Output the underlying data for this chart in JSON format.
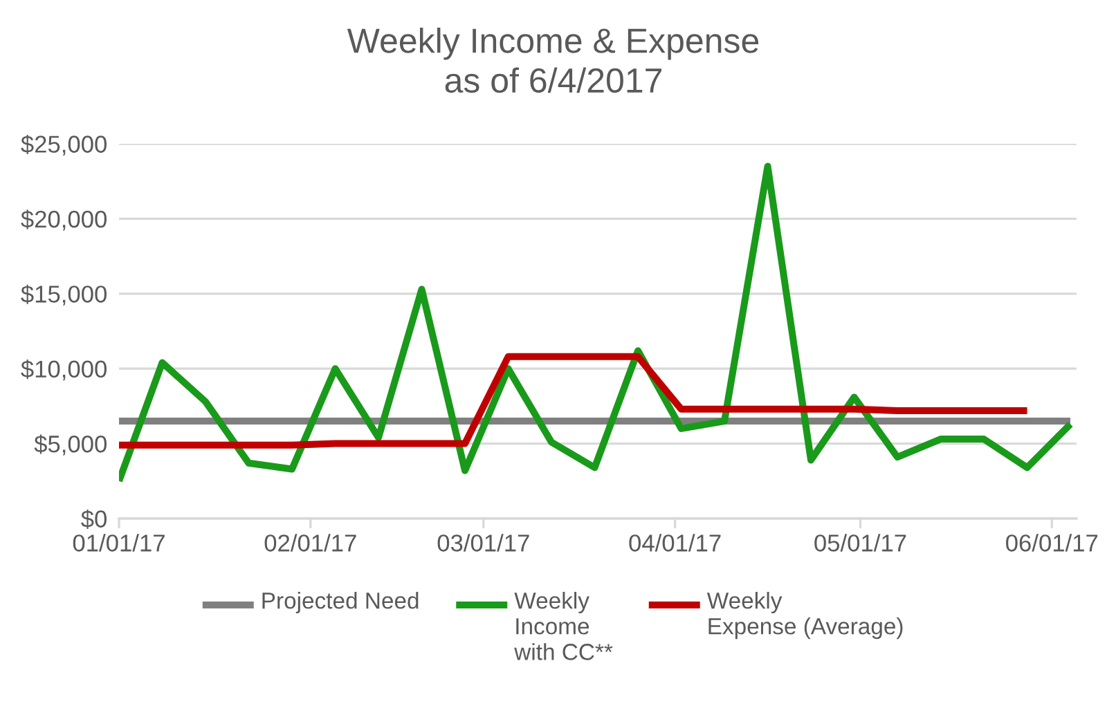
{
  "chart_data": {
    "type": "line",
    "title": "Weekly Income & Expense\nas of 6/4/2017",
    "xlim": [
      "2017-01-01",
      "2017-06-05"
    ],
    "xticks": [
      {
        "value": "2017-01-01",
        "label": "01/01/17"
      },
      {
        "value": "2017-02-01",
        "label": "02/01/17"
      },
      {
        "value": "2017-03-01",
        "label": "03/01/17"
      },
      {
        "value": "2017-04-01",
        "label": "04/01/17"
      },
      {
        "value": "2017-05-01",
        "label": "05/01/17"
      },
      {
        "value": "2017-06-01",
        "label": "06/01/17"
      }
    ],
    "ylim": [
      0,
      25000
    ],
    "yticks": [
      {
        "value": 0,
        "label": "$0"
      },
      {
        "value": 5000,
        "label": "$5,000"
      },
      {
        "value": 10000,
        "label": "$10,000"
      },
      {
        "value": 15000,
        "label": "$15,000"
      },
      {
        "value": 20000,
        "label": "$20,000"
      },
      {
        "value": 25000,
        "label": "$25,000"
      }
    ],
    "grid": "y",
    "legend": "bottom",
    "series": [
      {
        "name": "Projected Need",
        "color": "#808080",
        "x": [
          "2017-01-01",
          "2017-06-04"
        ],
        "values": [
          6500,
          6500
        ]
      },
      {
        "name": "Weekly\nIncome\nwith CC**",
        "color": "#1a9a1a",
        "x": [
          "2017-01-01",
          "2017-01-08",
          "2017-01-15",
          "2017-01-22",
          "2017-01-29",
          "2017-02-05",
          "2017-02-12",
          "2017-02-19",
          "2017-02-26",
          "2017-03-05",
          "2017-03-12",
          "2017-03-19",
          "2017-03-26",
          "2017-04-02",
          "2017-04-09",
          "2017-04-16",
          "2017-04-23",
          "2017-04-30",
          "2017-05-07",
          "2017-05-14",
          "2017-05-21",
          "2017-05-28",
          "2017-06-04"
        ],
        "values": [
          2500,
          10400,
          7800,
          3700,
          3300,
          10000,
          5400,
          15300,
          3200,
          10000,
          5100,
          3400,
          11200,
          6000,
          6500,
          23500,
          3900,
          8100,
          4100,
          5300,
          5300,
          3400,
          6300
        ]
      },
      {
        "name": "Weekly\nExpense (Average)",
        "color": "#c00000",
        "x": [
          "2017-01-01",
          "2017-01-08",
          "2017-01-15",
          "2017-01-22",
          "2017-01-29",
          "2017-02-05",
          "2017-02-12",
          "2017-02-19",
          "2017-02-26",
          "2017-03-05",
          "2017-03-12",
          "2017-03-19",
          "2017-03-26",
          "2017-04-02",
          "2017-04-09",
          "2017-04-16",
          "2017-04-23",
          "2017-04-30",
          "2017-05-07",
          "2017-05-14",
          "2017-05-21",
          "2017-05-28"
        ],
        "values": [
          4900,
          4900,
          4900,
          4900,
          4900,
          5000,
          5000,
          5000,
          5000,
          10800,
          10800,
          10800,
          10800,
          7300,
          7300,
          7300,
          7300,
          7300,
          7200,
          7200,
          7200,
          7200
        ]
      }
    ]
  }
}
